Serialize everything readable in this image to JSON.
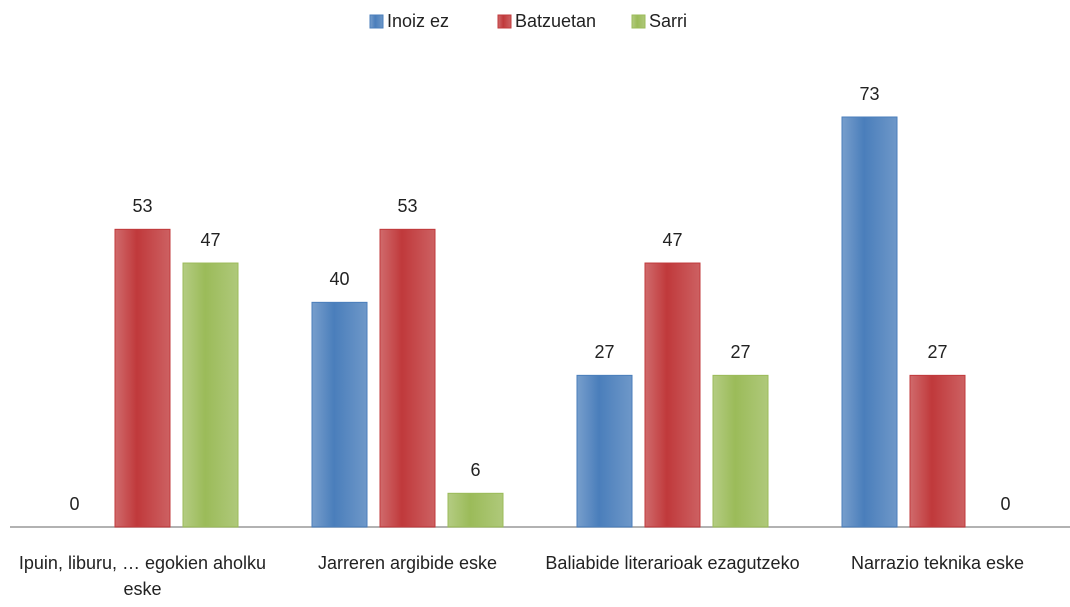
{
  "chart_data": {
    "type": "bar",
    "categories": [
      "Ipuin, liburu, … egokien aholku eske",
      "Jarreren argibide eske",
      "Baliabide literarioak ezagutzeko",
      "Narrazio teknika eske"
    ],
    "series": [
      {
        "name": "Inoiz ez",
        "color": "#4a7ebb",
        "values": [
          0,
          40,
          27,
          73
        ]
      },
      {
        "name": "Batzuetan",
        "color": "#c0393b",
        "values": [
          53,
          53,
          47,
          27
        ]
      },
      {
        "name": "Sarri",
        "color": "#9bbb59",
        "values": [
          47,
          6,
          27,
          0
        ]
      }
    ],
    "legend": "top"
  }
}
